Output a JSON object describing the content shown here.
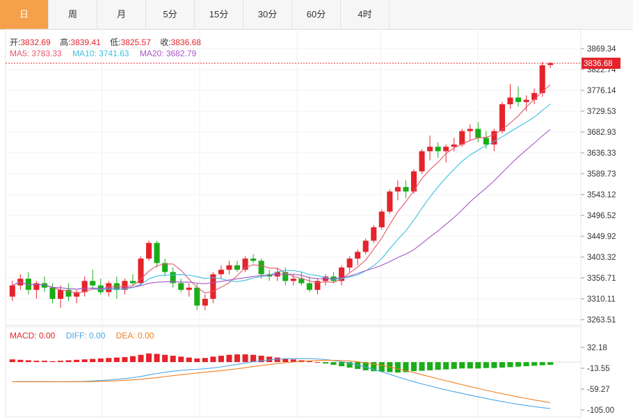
{
  "tabs": [
    {
      "label": "日",
      "active": true
    },
    {
      "label": "周",
      "active": false
    },
    {
      "label": "月",
      "active": false
    },
    {
      "label": "5分",
      "active": false
    },
    {
      "label": "15分",
      "active": false
    },
    {
      "label": "30分",
      "active": false
    },
    {
      "label": "60分",
      "active": false
    },
    {
      "label": "4时",
      "active": false
    }
  ],
  "ohlc": {
    "open_label": "开:",
    "open": "3832.69",
    "high_label": "高:",
    "high": "3839.41",
    "low_label": "低:",
    "low": "3825.57",
    "close_label": "收:",
    "close": "3836.68"
  },
  "ma_legend": {
    "ma5": "MA5: 3783.33",
    "ma10": "MA10: 3741.63",
    "ma20": "MA20: 3682.79"
  },
  "macd_legend": {
    "macd": "MACD: 0.00",
    "diff": "DIFF: 0.00",
    "dea": "DEA: 0.00"
  },
  "colors": {
    "up": "#e5232b",
    "down": "#1aad19",
    "ma5": "#e5566e",
    "ma10": "#3bbfe0",
    "ma20": "#a855c8",
    "diff": "#4aa6e6",
    "dea": "#f07f1f",
    "active_tab": "#f5a04a"
  },
  "chart_data": {
    "type": "candlestick",
    "price_axis_ticks": [
      "3869.34",
      "3822.74",
      "3776.14",
      "3729.53",
      "3682.93",
      "3636.33",
      "3589.73",
      "3543.12",
      "3496.52",
      "3449.92",
      "3403.32",
      "3356.71",
      "3310.11",
      "3263.51"
    ],
    "price_ylim": [
      3263.51,
      3869.34
    ],
    "last_price": "3836.68",
    "macd_axis_ticks": [
      "32.18",
      "-13.55",
      "-59.27",
      "-105.00"
    ],
    "macd_ylim": [
      -105.0,
      32.18
    ],
    "candles": [
      [
        3315,
        3350,
        3305,
        3340
      ],
      [
        3340,
        3365,
        3330,
        3355
      ],
      [
        3355,
        3370,
        3320,
        3330
      ],
      [
        3330,
        3350,
        3310,
        3345
      ],
      [
        3345,
        3360,
        3325,
        3335
      ],
      [
        3335,
        3345,
        3300,
        3310
      ],
      [
        3310,
        3340,
        3290,
        3330
      ],
      [
        3330,
        3345,
        3305,
        3315
      ],
      [
        3315,
        3330,
        3300,
        3325
      ],
      [
        3325,
        3360,
        3315,
        3350
      ],
      [
        3350,
        3375,
        3335,
        3340
      ],
      [
        3340,
        3355,
        3320,
        3325
      ],
      [
        3325,
        3350,
        3315,
        3345
      ],
      [
        3345,
        3360,
        3310,
        3330
      ],
      [
        3330,
        3355,
        3320,
        3350
      ],
      [
        3350,
        3365,
        3340,
        3345
      ],
      [
        3345,
        3405,
        3340,
        3400
      ],
      [
        3400,
        3440,
        3395,
        3435
      ],
      [
        3435,
        3440,
        3380,
        3390
      ],
      [
        3390,
        3400,
        3360,
        3370
      ],
      [
        3370,
        3380,
        3335,
        3345
      ],
      [
        3345,
        3355,
        3325,
        3330
      ],
      [
        3330,
        3345,
        3315,
        3335
      ],
      [
        3335,
        3345,
        3285,
        3295
      ],
      [
        3295,
        3320,
        3285,
        3310
      ],
      [
        3310,
        3370,
        3300,
        3365
      ],
      [
        3365,
        3385,
        3355,
        3375
      ],
      [
        3375,
        3395,
        3365,
        3385
      ],
      [
        3385,
        3395,
        3370,
        3375
      ],
      [
        3375,
        3405,
        3370,
        3400
      ],
      [
        3400,
        3410,
        3390,
        3395
      ],
      [
        3395,
        3400,
        3355,
        3365
      ],
      [
        3365,
        3375,
        3350,
        3360
      ],
      [
        3360,
        3380,
        3350,
        3370
      ],
      [
        3370,
        3380,
        3340,
        3350
      ],
      [
        3350,
        3365,
        3340,
        3355
      ],
      [
        3355,
        3370,
        3340,
        3345
      ],
      [
        3345,
        3360,
        3325,
        3330
      ],
      [
        3330,
        3355,
        3320,
        3350
      ],
      [
        3350,
        3365,
        3340,
        3360
      ],
      [
        3360,
        3370,
        3345,
        3350
      ],
      [
        3350,
        3385,
        3340,
        3380
      ],
      [
        3380,
        3405,
        3370,
        3400
      ],
      [
        3400,
        3420,
        3385,
        3415
      ],
      [
        3415,
        3445,
        3410,
        3440
      ],
      [
        3440,
        3475,
        3435,
        3470
      ],
      [
        3470,
        3510,
        3465,
        3505
      ],
      [
        3505,
        3555,
        3500,
        3550
      ],
      [
        3550,
        3575,
        3530,
        3560
      ],
      [
        3560,
        3575,
        3535,
        3550
      ],
      [
        3550,
        3600,
        3545,
        3595
      ],
      [
        3595,
        3645,
        3590,
        3640
      ],
      [
        3640,
        3675,
        3620,
        3650
      ],
      [
        3650,
        3660,
        3625,
        3640
      ],
      [
        3640,
        3655,
        3615,
        3650
      ],
      [
        3650,
        3670,
        3640,
        3655
      ],
      [
        3655,
        3690,
        3650,
        3685
      ],
      [
        3685,
        3700,
        3665,
        3690
      ],
      [
        3690,
        3705,
        3660,
        3670
      ],
      [
        3670,
        3685,
        3645,
        3655
      ],
      [
        3655,
        3690,
        3640,
        3685
      ],
      [
        3685,
        3750,
        3680,
        3745
      ],
      [
        3745,
        3790,
        3735,
        3760
      ],
      [
        3760,
        3785,
        3740,
        3750
      ],
      [
        3750,
        3765,
        3730,
        3755
      ],
      [
        3755,
        3780,
        3745,
        3770
      ],
      [
        3770,
        3839,
        3762,
        3832
      ],
      [
        3832.69,
        3839.41,
        3825.57,
        3836.68
      ]
    ],
    "macd_hist": [
      6,
      5,
      4,
      3,
      3,
      2,
      3,
      4,
      5,
      6,
      7,
      8,
      9,
      10,
      11,
      13,
      16,
      19,
      18,
      16,
      14,
      12,
      10,
      8,
      9,
      12,
      14,
      16,
      17,
      17,
      16,
      14,
      12,
      10,
      8,
      6,
      4,
      2,
      0,
      -3,
      -6,
      -9,
      -12,
      -15,
      -18,
      -20,
      -21,
      -22,
      -23,
      -22,
      -20,
      -19,
      -18,
      -17,
      -16,
      -15,
      -14,
      -14,
      -14,
      -13,
      -13,
      -12,
      -11,
      -10,
      -9,
      -8,
      -7,
      -6
    ]
  }
}
